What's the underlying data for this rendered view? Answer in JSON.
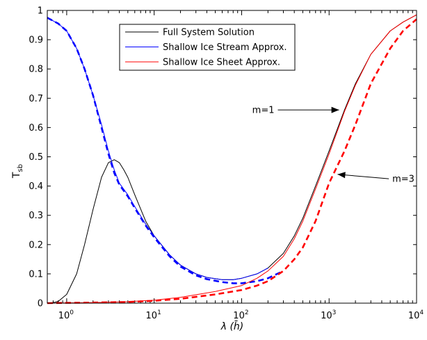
{
  "chart_data": {
    "type": "line",
    "xscale": "log",
    "xlim": [
      0.6,
      10000
    ],
    "ylim": [
      0,
      1
    ],
    "xlabel": "λ   (h̄)",
    "ylabel": "T",
    "ylabel_sub": "sb",
    "x_ticks": [
      {
        "value": 1,
        "base": "10",
        "exp": "0"
      },
      {
        "value": 10,
        "base": "10",
        "exp": "1"
      },
      {
        "value": 100,
        "base": "10",
        "exp": "2"
      },
      {
        "value": 1000,
        "base": "10",
        "exp": "3"
      },
      {
        "value": 10000,
        "base": "10",
        "exp": "4"
      }
    ],
    "y_ticks": [
      {
        "value": 0,
        "label": "0"
      },
      {
        "value": 0.1,
        "label": "0.1"
      },
      {
        "value": 0.2,
        "label": "0.2"
      },
      {
        "value": 0.3,
        "label": "0.3"
      },
      {
        "value": 0.4,
        "label": "0.4"
      },
      {
        "value": 0.5,
        "label": "0.5"
      },
      {
        "value": 0.6,
        "label": "0.6"
      },
      {
        "value": 0.7,
        "label": "0.7"
      },
      {
        "value": 0.8,
        "label": "0.8"
      },
      {
        "value": 0.9,
        "label": "0.9"
      },
      {
        "value": 1,
        "label": "1"
      }
    ],
    "legend": {
      "placement": "top-center",
      "entries": [
        {
          "label": "Full System Solution",
          "color": "#000000"
        },
        {
          "label": "Shallow Ice Stream Approx.",
          "color": "#0000ff"
        },
        {
          "label": "Shallow Ice Sheet Approx.",
          "color": "#ff0000"
        }
      ]
    },
    "series": [
      {
        "legend_index": 0,
        "color": "#000000",
        "dashed": false,
        "x": [
          0.6,
          0.7,
          0.8,
          1.0,
          1.3,
          1.6,
          2.0,
          2.5,
          3.0,
          3.5,
          4.0,
          4.5,
          5,
          6,
          8,
          10,
          15,
          20,
          30,
          40,
          60,
          80,
          100,
          150,
          200,
          300,
          400,
          500,
          700,
          1000,
          1500,
          2000,
          3000,
          5000,
          7000,
          10000
        ],
        "y": [
          0.0,
          0.002,
          0.006,
          0.03,
          0.1,
          0.2,
          0.32,
          0.43,
          0.48,
          0.49,
          0.48,
          0.455,
          0.43,
          0.37,
          0.28,
          0.23,
          0.165,
          0.13,
          0.1,
          0.088,
          0.08,
          0.08,
          0.085,
          0.1,
          0.12,
          0.17,
          0.23,
          0.29,
          0.4,
          0.52,
          0.66,
          0.75,
          0.85,
          0.93,
          0.96,
          0.985
        ]
      },
      {
        "legend_index": 1,
        "color": "#0000ff",
        "dashed": false,
        "x": [
          0.6,
          0.8,
          1.0,
          1.3,
          1.6,
          2.0,
          2.5,
          3.0,
          3.5,
          4.0,
          5,
          6,
          8,
          10,
          15,
          20,
          30,
          40,
          60,
          80,
          100,
          150,
          200
        ],
        "y": [
          0.975,
          0.955,
          0.93,
          0.87,
          0.8,
          0.71,
          0.61,
          0.52,
          0.455,
          0.41,
          0.37,
          0.33,
          0.27,
          0.23,
          0.165,
          0.13,
          0.1,
          0.088,
          0.08,
          0.08,
          0.085,
          0.1,
          0.12
        ]
      },
      {
        "legend_index": 1,
        "color": "#0000ff",
        "dashed": true,
        "x": [
          0.6,
          0.8,
          1.0,
          1.3,
          1.6,
          2.0,
          2.5,
          3.0,
          3.5,
          4.0,
          5,
          6,
          8,
          10,
          15,
          20,
          30,
          40,
          60,
          80,
          100,
          150,
          200,
          300
        ],
        "y": [
          0.975,
          0.955,
          0.93,
          0.87,
          0.8,
          0.71,
          0.6,
          0.51,
          0.445,
          0.405,
          0.365,
          0.325,
          0.265,
          0.225,
          0.16,
          0.125,
          0.095,
          0.082,
          0.072,
          0.068,
          0.068,
          0.075,
          0.085,
          0.11
        ]
      },
      {
        "legend_index": 2,
        "color": "#ff0000",
        "dashed": false,
        "x": [
          0.6,
          1,
          2,
          5,
          10,
          20,
          50,
          100,
          150,
          200,
          300,
          400,
          500,
          700,
          1000,
          1500,
          2000,
          3000,
          5000,
          7000,
          10000
        ],
        "y": [
          0.0,
          0.001,
          0.002,
          0.005,
          0.01,
          0.02,
          0.04,
          0.06,
          0.085,
          0.11,
          0.16,
          0.22,
          0.28,
          0.39,
          0.51,
          0.655,
          0.745,
          0.85,
          0.93,
          0.96,
          0.985
        ]
      },
      {
        "legend_index": 2,
        "color": "#ff0000",
        "dashed": true,
        "x": [
          0.6,
          1,
          2,
          5,
          10,
          20,
          50,
          100,
          150,
          200,
          300,
          400,
          500,
          700,
          1000,
          1500,
          2000,
          3000,
          5000,
          7000,
          10000
        ],
        "y": [
          0.0,
          0.001,
          0.002,
          0.004,
          0.008,
          0.015,
          0.03,
          0.045,
          0.06,
          0.075,
          0.11,
          0.15,
          0.19,
          0.28,
          0.41,
          0.52,
          0.61,
          0.75,
          0.87,
          0.93,
          0.97
        ]
      }
    ],
    "annotations": [
      {
        "text": "m=1",
        "text_x": 250,
        "text_y": 0.66,
        "arrow_to_x": 1300,
        "arrow_to_y": 0.66
      },
      {
        "text": "m=3",
        "text_x": 5000,
        "text_y": 0.425,
        "arrow_to_x": 1250,
        "arrow_to_y": 0.44
      }
    ]
  }
}
